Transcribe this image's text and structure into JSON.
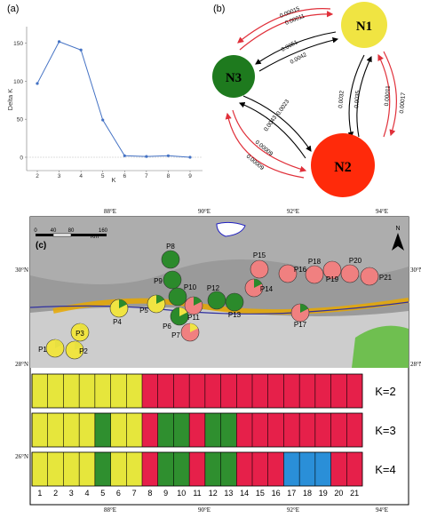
{
  "panel_a": {
    "tag": "(a)",
    "ylabel": "Delta K",
    "xlabel": "K",
    "ytick_labels": [
      "150",
      "100",
      "50",
      "0"
    ],
    "xtick_labels": [
      "2",
      "3",
      "4",
      "5",
      "6",
      "7",
      "8",
      "9"
    ],
    "line_color": "#4472c4"
  },
  "chart_data": {
    "type": "line",
    "x": [
      2,
      3,
      4,
      5,
      6,
      7,
      8,
      9
    ],
    "values": [
      97,
      152,
      141,
      49,
      2,
      1,
      2,
      0
    ],
    "xlabel": "K",
    "ylabel": "Delta K",
    "ylim": [
      0,
      160
    ],
    "grid": false,
    "baseline": 0
  },
  "panel_b": {
    "tag": "(b)",
    "nodes": [
      {
        "id": "N1",
        "label": "N1",
        "color": "#f0e442"
      },
      {
        "id": "N2",
        "label": "N2",
        "color": "#ff2a0a"
      },
      {
        "id": "N3",
        "label": "N3",
        "color": "#1e7a1e"
      }
    ],
    "edges": {
      "n1_n3_red": "0.00015",
      "n1_n3_red2": "0.00011",
      "n1_n3_black": "0.0051",
      "n1_n3_black2": "0.0042",
      "n1_n2_black": "0.0032",
      "n1_n2_black2": "0.0035",
      "n1_n2_red": "0.00011",
      "n1_n2_red2": "0.00017",
      "n3_n2_black": "0.0023",
      "n3_n2_black2": "0.0043",
      "n3_n2_red": "0.00009",
      "n3_n2_red2": "0.00009"
    }
  },
  "panel_c": {
    "tag": "(c)",
    "scale_labels": [
      "0",
      "40",
      "80",
      "160"
    ],
    "scale_unit": "Km",
    "top_ticks": [
      "88°E",
      "90°E",
      "92°E",
      "94°E"
    ],
    "bottom_ticks": [
      "88°E",
      "90°E",
      "92°E",
      "94°E"
    ],
    "left_ticks": [
      "30°N",
      "28°N",
      "26°N"
    ],
    "right_ticks": [
      "30°N",
      "28°N"
    ],
    "north": "N",
    "populations": [
      {
        "label": "P1",
        "color": "#f0e442",
        "second": "#e8e040"
      },
      {
        "label": "P2",
        "color": "#f0e442",
        "second": "#e8e040"
      },
      {
        "label": "P3",
        "color": "#f0e442",
        "second": "#e8e040"
      },
      {
        "label": "P4",
        "color": "#f0e442",
        "second": "#2b8a2b"
      },
      {
        "label": "P5",
        "color": "#f0e442",
        "second": "#2b8a2b"
      },
      {
        "label": "P6",
        "color": "#2b8a2b",
        "second": "#f0e442"
      },
      {
        "label": "P7",
        "color": "#f08080",
        "second": "#f0e442"
      },
      {
        "label": "P8",
        "color": "#2b8a2b",
        "second": "#2b8a2b"
      },
      {
        "label": "P9",
        "color": "#2b8a2b",
        "second": "#2b8a2b"
      },
      {
        "label": "P10",
        "color": "#2b8a2b",
        "second": "#2b8a2b"
      },
      {
        "label": "P11",
        "color": "#f08080",
        "second": "#2b8a2b"
      },
      {
        "label": "P12",
        "color": "#2b8a2b",
        "second": "#2b8a2b"
      },
      {
        "label": "P13",
        "color": "#2b8a2b",
        "second": "#2b8a2b"
      },
      {
        "label": "P14",
        "color": "#f08080",
        "second": "#2b8a2b"
      },
      {
        "label": "P15",
        "color": "#f08080",
        "second": "#f08080"
      },
      {
        "label": "P16",
        "color": "#f08080",
        "second": "#f08080"
      },
      {
        "label": "P17",
        "color": "#f08080",
        "second": "#2b8a2b"
      },
      {
        "label": "P18",
        "color": "#f08080",
        "second": "#f08080"
      },
      {
        "label": "P19",
        "color": "#f08080",
        "second": "#f08080"
      },
      {
        "label": "P20",
        "color": "#f08080",
        "second": "#f08080"
      },
      {
        "label": "P21",
        "color": "#f08080",
        "second": "#f08080"
      }
    ],
    "structure_rows": [
      {
        "label": "K=2",
        "colors": [
          "#e6e63c",
          "#e6e63c",
          "#e6e63c",
          "#e6e63c",
          "#e6e63c",
          "#e6e63c",
          "#e6e63c",
          "#e6204a",
          "#e6204a",
          "#e6204a",
          "#e6204a",
          "#e6204a",
          "#e6204a",
          "#e6204a",
          "#e6204a",
          "#e6204a",
          "#e6204a",
          "#e6204a",
          "#e6204a",
          "#e6204a",
          "#e6204a"
        ]
      },
      {
        "label": "K=3",
        "colors": [
          "#e6e63c",
          "#e6e63c",
          "#e6e63c",
          "#e6e63c",
          "#2f8f2f",
          "#e6e63c",
          "#e6e63c",
          "#e6204a",
          "#2f8f2f",
          "#2f8f2f",
          "#e6204a",
          "#2f8f2f",
          "#2f8f2f",
          "#e6204a",
          "#e6204a",
          "#e6204a",
          "#e6204a",
          "#e6204a",
          "#e6204a",
          "#e6204a",
          "#e6204a"
        ]
      },
      {
        "label": "K=4",
        "colors": [
          "#e6e63c",
          "#e6e63c",
          "#e6e63c",
          "#e6e63c",
          "#2f8f2f",
          "#e6e63c",
          "#e6e63c",
          "#e6204a",
          "#2f8f2f",
          "#2f8f2f",
          "#e6204a",
          "#2f8f2f",
          "#2f8f2f",
          "#e6204a",
          "#e6204a",
          "#e6204a",
          "#2a8fd8",
          "#2a8fd8",
          "#2a8fd8",
          "#e6204a",
          "#e6204a"
        ]
      }
    ],
    "population_numbers": [
      "1",
      "2",
      "3",
      "4",
      "5",
      "6",
      "7",
      "8",
      "9",
      "10",
      "11",
      "12",
      "13",
      "14",
      "15",
      "16",
      "17",
      "18",
      "19",
      "20",
      "21"
    ]
  }
}
